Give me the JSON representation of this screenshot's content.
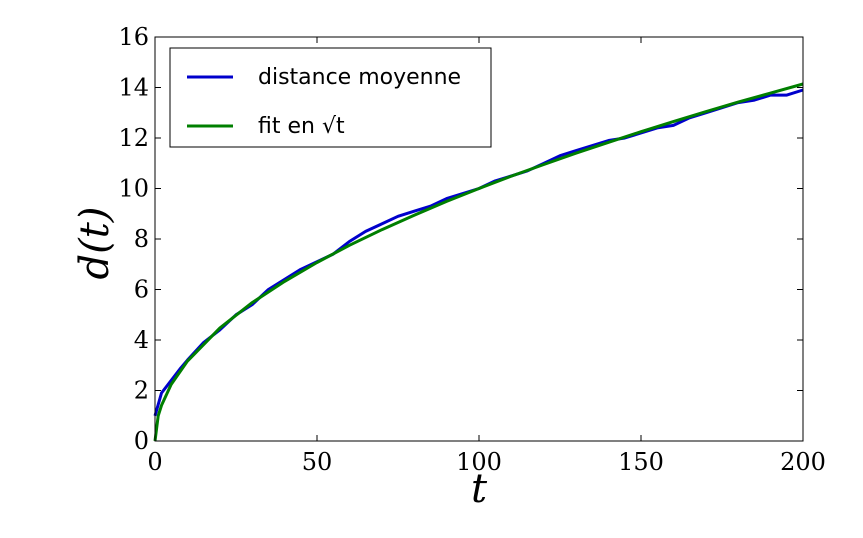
{
  "chart_data": {
    "type": "line",
    "xlabel": "t",
    "ylabel": "d(t)",
    "xlim": [
      0,
      200
    ],
    "ylim": [
      0,
      16
    ],
    "x_ticks": [
      "0",
      "50",
      "100",
      "150",
      "200"
    ],
    "y_ticks": [
      "0",
      "2",
      "4",
      "6",
      "8",
      "10",
      "12",
      "14",
      "16"
    ],
    "grid": false,
    "legend_placement": "top-left",
    "series": [
      {
        "name": "distance moyenne",
        "color": "#0000cc",
        "x": [
          0,
          2,
          5,
          8,
          10,
          15,
          20,
          25,
          30,
          35,
          40,
          45,
          50,
          55,
          60,
          65,
          70,
          75,
          80,
          85,
          90,
          95,
          100,
          105,
          110,
          115,
          120,
          125,
          130,
          135,
          140,
          145,
          150,
          155,
          160,
          165,
          170,
          175,
          180,
          185,
          190,
          195,
          200
        ],
        "y": [
          1.0,
          1.9,
          2.4,
          2.9,
          3.2,
          3.9,
          4.4,
          5.0,
          5.4,
          6.0,
          6.4,
          6.8,
          7.1,
          7.4,
          7.9,
          8.3,
          8.6,
          8.9,
          9.1,
          9.3,
          9.6,
          9.8,
          10.0,
          10.3,
          10.5,
          10.7,
          11.0,
          11.3,
          11.5,
          11.7,
          11.9,
          12.0,
          12.2,
          12.4,
          12.5,
          12.8,
          13.0,
          13.2,
          13.4,
          13.5,
          13.7,
          13.7,
          13.9
        ]
      },
      {
        "name": "fit en √t",
        "color": "#007f00",
        "formula": "d(t) = √t",
        "x": [
          0,
          1,
          2,
          5,
          10,
          20,
          30,
          40,
          50,
          60,
          70,
          80,
          90,
          100,
          110,
          120,
          130,
          140,
          150,
          160,
          170,
          180,
          190,
          200
        ],
        "y": [
          0,
          1.0,
          1.41,
          2.24,
          3.16,
          4.47,
          5.48,
          6.32,
          7.07,
          7.75,
          8.37,
          8.94,
          9.49,
          10.0,
          10.49,
          10.95,
          11.4,
          11.83,
          12.25,
          12.65,
          13.04,
          13.42,
          13.78,
          14.14
        ]
      }
    ]
  }
}
